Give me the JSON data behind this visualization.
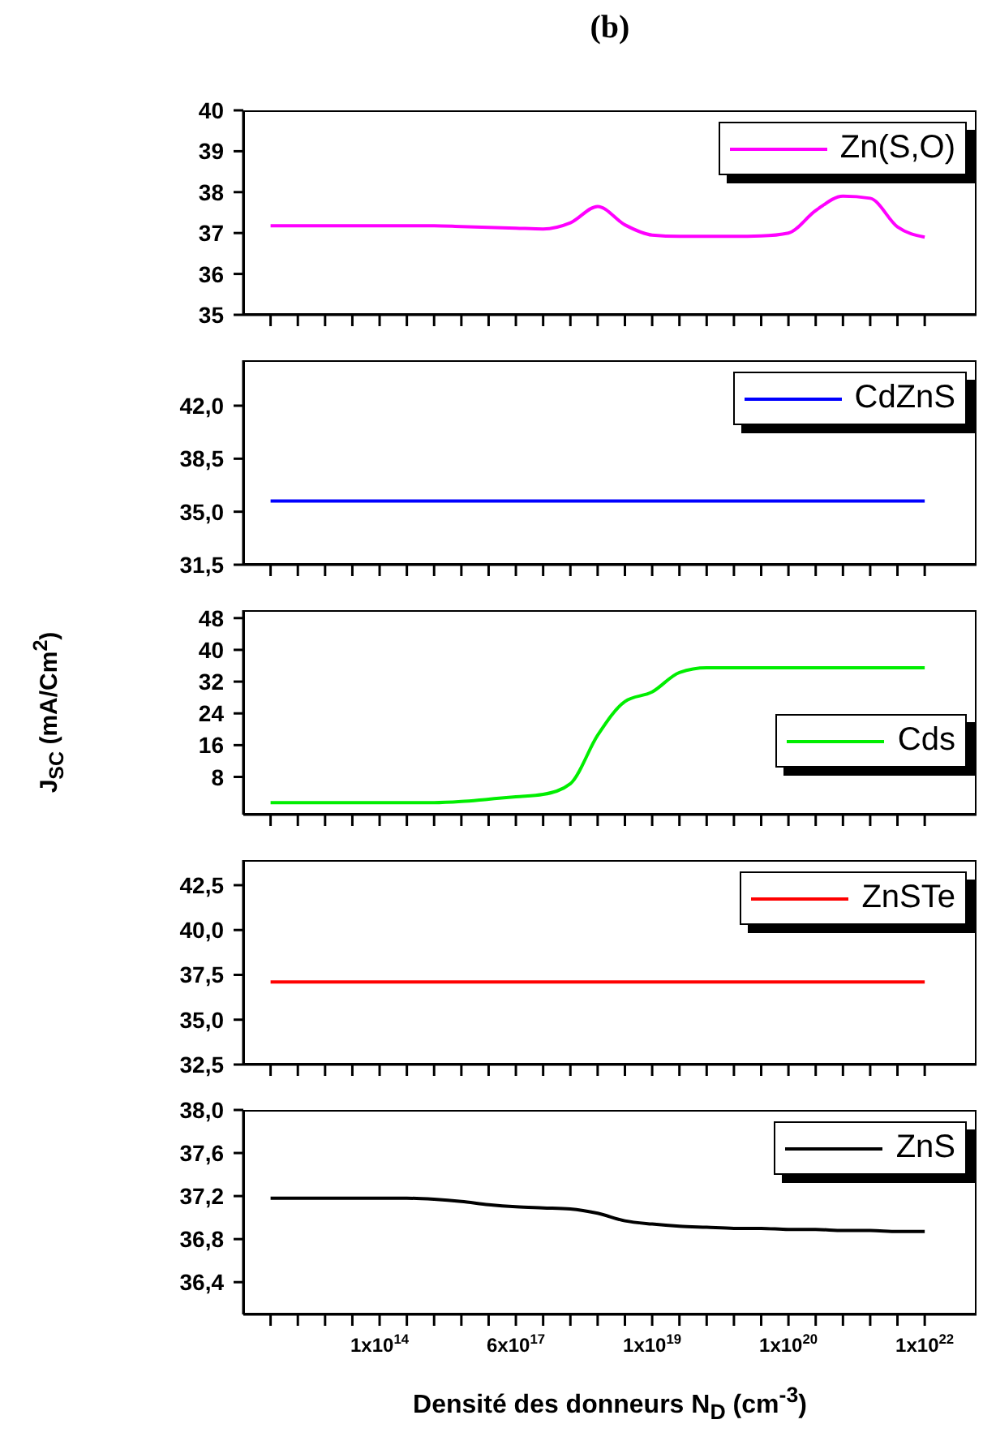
{
  "chart_data": [
    {
      "type": "line",
      "title": "(b)",
      "legend": "top right",
      "marker": "none",
      "categories": [
        null,
        null,
        null,
        null,
        null,
        null,
        null,
        null,
        null,
        null,
        null,
        null,
        null,
        null,
        null,
        null,
        null,
        null,
        null,
        null,
        null,
        null,
        null,
        null,
        null
      ],
      "ylim": [
        35,
        40
      ],
      "yticks": [
        35,
        36,
        37,
        38,
        39,
        40
      ],
      "series": [
        {
          "name": "Zn(S,O)",
          "color": "#ff00ff",
          "values": [
            37.18,
            37.18,
            37.18,
            37.18,
            37.18,
            37.18,
            37.18,
            37.16,
            37.14,
            37.12,
            37.1,
            37.25,
            37.65,
            37.2,
            36.95,
            36.92,
            36.92,
            36.92,
            36.93,
            37.0,
            37.55,
            37.9,
            37.85,
            37.15,
            36.9
          ]
        }
      ]
    },
    {
      "type": "line",
      "legend": "top right",
      "marker": "none",
      "categories": [
        null,
        null,
        null,
        null,
        null,
        null,
        null,
        null,
        null,
        null,
        null,
        null,
        null,
        null,
        null,
        null,
        null,
        null,
        null,
        null,
        null,
        null,
        null,
        null,
        null
      ],
      "ylim": [
        31.5,
        45
      ],
      "yticks": [
        {
          "value": 31.5,
          "label": "31,5"
        },
        {
          "value": 35,
          "label": "35,0"
        },
        {
          "value": 38.5,
          "label": "38,5"
        },
        {
          "value": 42,
          "label": "42,0"
        }
      ],
      "series": [
        {
          "name": "CdZnS",
          "color": "#0000ff",
          "values": [
            35.7,
            35.7,
            35.7,
            35.7,
            35.7,
            35.7,
            35.7,
            35.7,
            35.7,
            35.7,
            35.7,
            35.7,
            35.7,
            35.7,
            35.7,
            35.7,
            35.7,
            35.7,
            35.7,
            35.7,
            35.7,
            35.7,
            35.7,
            35.7,
            35.7
          ]
        }
      ]
    },
    {
      "type": "line",
      "ylabel": "J$_{SC}$ (mA/Cm$^{2}$)",
      "legend": "bottom right",
      "marker": "none",
      "categories": [
        null,
        null,
        null,
        null,
        null,
        null,
        null,
        null,
        null,
        null,
        null,
        null,
        null,
        null,
        null,
        null,
        null,
        null,
        null,
        null,
        null,
        null,
        null,
        null,
        null
      ],
      "ylim": [
        -1.5,
        50
      ],
      "yticks": [
        8,
        16,
        24,
        32,
        40,
        48
      ],
      "series": [
        {
          "name": "Cds",
          "color": "#00ee00",
          "values": [
            1.5,
            1.5,
            1.5,
            1.5,
            1.5,
            1.5,
            1.5,
            1.8,
            2.4,
            3.0,
            3.6,
            6.3,
            18.5,
            27,
            29.4,
            34.3,
            35.5,
            35.5,
            35.5,
            35.5,
            35.5,
            35.5,
            35.5,
            35.5,
            35.5
          ]
        }
      ]
    },
    {
      "type": "line",
      "legend": "top right",
      "marker": "none",
      "categories": [
        null,
        null,
        null,
        null,
        null,
        null,
        null,
        null,
        null,
        null,
        null,
        null,
        null,
        null,
        null,
        null,
        null,
        null,
        null,
        null,
        null,
        null,
        null,
        null,
        null
      ],
      "ylim": [
        32.5,
        43.9
      ],
      "yticks": [
        {
          "value": 32.5,
          "label": "32,5"
        },
        {
          "value": 35,
          "label": "35,0"
        },
        {
          "value": 37.5,
          "label": "37,5"
        },
        {
          "value": 40,
          "label": "40,0"
        },
        {
          "value": 42.5,
          "label": "42,5"
        }
      ],
      "series": [
        {
          "name": "ZnSTe",
          "color": "#ff0000",
          "values": [
            37.1,
            37.1,
            37.1,
            37.1,
            37.1,
            37.1,
            37.1,
            37.1,
            37.1,
            37.1,
            37.1,
            37.1,
            37.1,
            37.1,
            37.1,
            37.1,
            37.1,
            37.1,
            37.1,
            37.1,
            37.1,
            37.1,
            37.1,
            37.1,
            37.1
          ]
        }
      ]
    },
    {
      "type": "line",
      "xlabel": "Densité des donneurs  N$_{D}$ (cm$^{-3}$)",
      "legend": "top right",
      "marker": "none",
      "categories": [
        null,
        null,
        null,
        null,
        "1x10$^{14}$",
        null,
        null,
        null,
        null,
        "6x10$^{17}$",
        null,
        null,
        null,
        null,
        "1x10$^{19}$",
        null,
        null,
        null,
        null,
        "1x10$^{20}$",
        null,
        null,
        null,
        null,
        "1x10$^{22}$"
      ],
      "ylim": [
        36.1,
        38
      ],
      "yticks": [
        {
          "value": 36.4,
          "label": "36,4"
        },
        {
          "value": 36.8,
          "label": "36,8"
        },
        {
          "value": 37.2,
          "label": "37,2"
        },
        {
          "value": 37.6,
          "label": "37,6"
        },
        {
          "value": 38,
          "label": "38,0"
        }
      ],
      "series": [
        {
          "name": "ZnS",
          "color": "#000000",
          "values": [
            37.18,
            37.18,
            37.18,
            37.18,
            37.18,
            37.18,
            37.17,
            37.15,
            37.12,
            37.1,
            37.09,
            37.08,
            37.04,
            36.97,
            36.94,
            36.92,
            36.91,
            36.9,
            36.9,
            36.89,
            36.89,
            36.88,
            36.88,
            36.87,
            36.87
          ]
        }
      ]
    }
  ]
}
